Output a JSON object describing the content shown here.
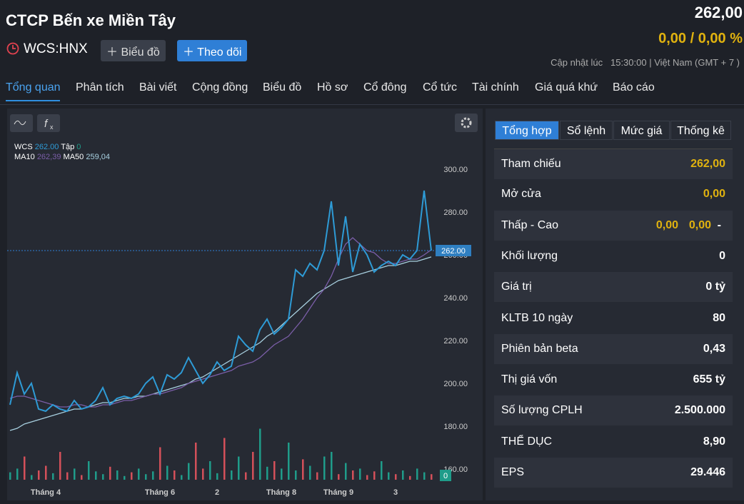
{
  "header": {
    "title": "CTCP Bến xe Miền Tây",
    "symbol": "WCS:HNX",
    "buttons": [
      "Biểu đồ",
      "Theo dõi"
    ],
    "price": "262,00",
    "change": "0,00 / 0,00 %",
    "updated_label": "Cập nhật lúc",
    "updated_time": "15:30:00 | Việt Nam (GMT + 7 )"
  },
  "tabs": [
    "Tổng quan",
    "Phân tích",
    "Bài viết",
    "Cộng đồng",
    "Biểu đồ",
    "Hồ sơ",
    "Cổ đông",
    "Cổ tức",
    "Tài chính",
    "Giá quá khứ",
    "Báo cáo"
  ],
  "chart": {
    "type": "line",
    "categories": [
      null,
      null,
      null,
      null,
      null,
      "Tháng 4",
      null,
      null,
      null,
      null,
      null,
      null,
      null,
      null,
      null,
      null,
      null,
      null,
      null,
      null,
      null,
      "Tháng 6",
      null,
      null,
      null,
      null,
      null,
      null,
      null,
      "2",
      null,
      null,
      null,
      null,
      null,
      null,
      null,
      null,
      "Tháng 8",
      null,
      null,
      null,
      null,
      null,
      null,
      null,
      "Tháng 9",
      null,
      null,
      null,
      null,
      null,
      null,
      null,
      "3",
      null,
      null,
      null,
      null,
      null
    ],
    "series": [
      {
        "name": "WCS",
        "color": "#2e9bd6",
        "legend_value": "262.00",
        "values": [
          190,
          205,
          195,
          200,
          188,
          187,
          190,
          188,
          187,
          192,
          188,
          189,
          192,
          198,
          190,
          193,
          194,
          193,
          195,
          200,
          203,
          195,
          204,
          202,
          205,
          212,
          206,
          200,
          204,
          210,
          206,
          208,
          222,
          218,
          215,
          225,
          230,
          223,
          226,
          230,
          253,
          250,
          256,
          253,
          262,
          285,
          255,
          278,
          252,
          265,
          260,
          252,
          255,
          257,
          255,
          260,
          258,
          262,
          290,
          262
        ]
      },
      {
        "name": "MA10",
        "color": "#7b5ea8",
        "legend_value": "262,39",
        "values": [
          193,
          194,
          194,
          193,
          192,
          191,
          190,
          189,
          189,
          190,
          190,
          189,
          189,
          190,
          190,
          191,
          192,
          192,
          193,
          194,
          195,
          195,
          196,
          197,
          198,
          200,
          201,
          202,
          203,
          204,
          205,
          206,
          208,
          209,
          210,
          212,
          215,
          218,
          220,
          222,
          226,
          230,
          235,
          240,
          244,
          250,
          258,
          265,
          268,
          265,
          262,
          261,
          258,
          256,
          256,
          257,
          258,
          258,
          260,
          262.39
        ]
      },
      {
        "name": "MA50",
        "color": "#a8d0e0",
        "legend_value": "259,04",
        "values": [
          178,
          179,
          181,
          182,
          183,
          184,
          185,
          186,
          187,
          188,
          188,
          189,
          190,
          191,
          191,
          192,
          193,
          193,
          194,
          194,
          195,
          196,
          197,
          198,
          199,
          200,
          202,
          203,
          205,
          207,
          209,
          211,
          213,
          215,
          217,
          219,
          222,
          224,
          227,
          230,
          233,
          236,
          239,
          242,
          244,
          246,
          248,
          249,
          250,
          251,
          252,
          253,
          254,
          255,
          255,
          256,
          257,
          257,
          258,
          259.04
        ]
      }
    ],
    "volume_label": "Tập",
    "volume_legend_value": "0",
    "volume_last_label": "0",
    "volume": [
      8,
      12,
      25,
      5,
      10,
      15,
      7,
      30,
      8,
      12,
      5,
      20,
      9,
      6,
      14,
      10,
      4,
      8,
      12,
      6,
      9,
      35,
      15,
      10,
      5,
      18,
      40,
      12,
      20,
      7,
      45,
      10,
      25,
      8,
      30,
      55,
      14,
      20,
      12,
      40,
      10,
      22,
      15,
      8,
      25,
      30,
      6,
      18,
      10,
      12,
      5,
      9,
      20,
      8,
      6,
      10,
      4,
      12,
      8,
      6
    ],
    "up_color": "#1f9c8a",
    "down_color": "#d4505a",
    "last_price": 262,
    "last_price_label": "262.00",
    "ylim": [
      155,
      310
    ],
    "yticks": [
      {
        "value": 160,
        "label": "160.00"
      },
      {
        "value": 180,
        "label": "180.00"
      },
      {
        "value": 200,
        "label": "200.00"
      },
      {
        "value": 220,
        "label": "220.00"
      },
      {
        "value": 240,
        "label": "240.00"
      },
      {
        "value": 260,
        "label": "260.00"
      },
      {
        "value": 280,
        "label": "280.00"
      },
      {
        "value": 300,
        "label": "300.00"
      }
    ]
  },
  "panel": {
    "tabs": [
      "Tổng hợp",
      "Sổ lệnh",
      "Mức giá",
      "Thống kê"
    ],
    "rows": [
      {
        "label": "Tham chiếu",
        "value": "262,00"
      },
      {
        "label": "Mở cửa",
        "value": "0,00"
      },
      {
        "label": "Thấp - Cao",
        "value": "0,00",
        "value2": "0,00",
        "value3": "-"
      },
      {
        "label": "Khối lượng",
        "value": "0"
      },
      {
        "label": "Giá trị",
        "value": "0 tỷ"
      },
      {
        "label": "KLTB 10 ngày",
        "value": "80"
      },
      {
        "label": "Phiên bản beta",
        "value": "0,43"
      },
      {
        "label": "Thị giá vốn",
        "value": "655 tỷ"
      },
      {
        "label": "Số lượng CPLH",
        "value": "2.500.000"
      },
      {
        "label": "THỂ DỤC",
        "value": "8,90"
      },
      {
        "label": "EPS",
        "value": "29.446"
      }
    ]
  }
}
